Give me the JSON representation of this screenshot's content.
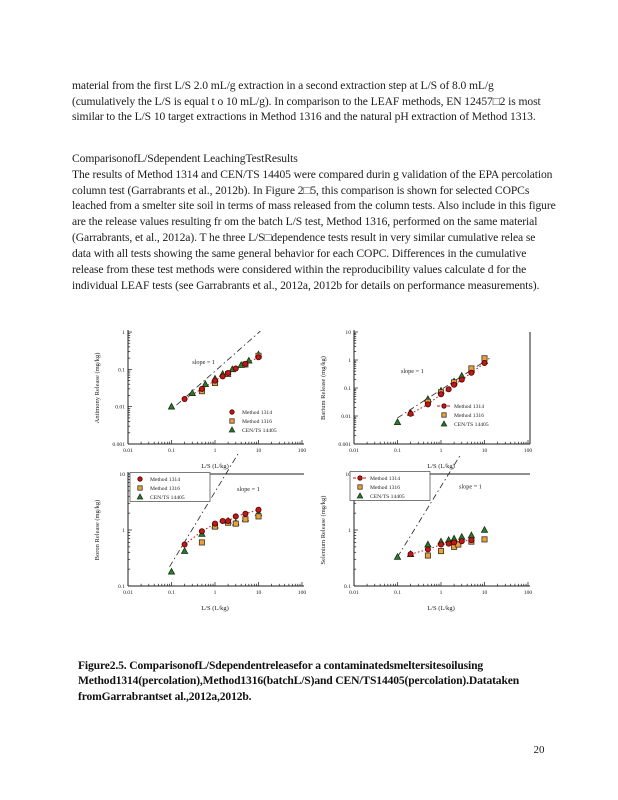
{
  "page_number": "20",
  "colors": {
    "ink": "#1c1c1c",
    "series_red": "#c01818",
    "series_orange": "#f0a030",
    "series_green": "#2c7a2c",
    "slope_line": "#222222"
  },
  "text": {
    "paragraph1": "material from the first L/S 2.0 mL/g extraction in a second extraction step at L/S of 8.0 mL/g (cumulatively the L/S is equal t o 10 mL/g).  In comparison to the LEAF methods, EN 12457□2 is most similar to the L/S 10 target  extractions in Method 1316 and the natural pH extraction of Method 1313.",
    "heading": "ComparisonofL/Sdependent  LeachingTestResults",
    "paragraph2": "The results of Method 1314 and CEN/TS 14405 were compared durin g validation of the EPA percolation column test (Garrabrants et al., 2012b).  In Figure  2□5, this comparison is shown for selected COPCs leached from a smelter site soil in terms of mass released from the column tests.  Also include in this figure are the release values resulting fr om the batch L/S test, Method 1316, performed on the same material (Garrabrants, et al., 2012a).  T he three L/S□dependence tests result in very similar cumulative relea se data with all tests showing  the same general behavior for each COPC.  Differences in the cumulative release from these test methods were considered within the reproducibility values calculate d for the individual LEAF tests (see Garrabrants et al., 2012a, 2012b for details on performance measurements).",
    "caption": "Figure2.5.  ComparisonofL/Sdependentreleasefor a contaminatedsmeltersitesoilusing Method1314(percolation),Method1316(batchL/S)and CEN/TS14405(percolation).Datataken fromGarrabrantset al.,2012a,2012b."
  },
  "chart_data": [
    {
      "type": "scatter",
      "name": "antimony",
      "xlabel": "L/S    (L/kg)",
      "ylabel": "Antimony     Release (mg/kg)",
      "xlim": [
        0.01,
        100
      ],
      "ylim": [
        0.001,
        1
      ],
      "xticks": [
        0.01,
        0.1,
        1,
        10,
        100
      ],
      "yticks": [
        1,
        0.1,
        0.01,
        0.001
      ],
      "grid": false,
      "slope_label": "slope = 1",
      "slope_label_at": [
        0.3,
        0.14
      ],
      "slope_line": {
        "x1": 0.13,
        "y1": 0.011,
        "x2": 11,
        "y2": 1.05
      },
      "frames": {
        "top": false,
        "right": false
      },
      "legend": {
        "pos": [
          138,
          92
        ],
        "box": false,
        "line_on_first": false
      },
      "series": [
        {
          "name": "Method    1314",
          "marker": "circle",
          "color": "#c01818",
          "edge": "#500000",
          "line": "dotted",
          "x": [
            0.2,
            0.5,
            1,
            1.5,
            2,
            3,
            5,
            10
          ],
          "y": [
            0.016,
            0.03,
            0.05,
            0.065,
            0.08,
            0.105,
            0.14,
            0.21
          ]
        },
        {
          "name": "Method    1316",
          "marker": "square",
          "color": "#f0a030",
          "edge": "#333333",
          "x": [
            0.5,
            1,
            2,
            5,
            10
          ],
          "y": [
            0.026,
            0.043,
            0.075,
            0.135,
            0.23
          ]
        },
        {
          "name": "CEN/TS  14405",
          "marker": "triangle",
          "color": "#2c7a2c",
          "edge": "#143314",
          "x": [
            0.1,
            0.3,
            0.6,
            1,
            1.5,
            2.5,
            4,
            6,
            10
          ],
          "y": [
            0.01,
            0.023,
            0.04,
            0.056,
            0.075,
            0.1,
            0.13,
            0.17,
            0.25
          ]
        }
      ]
    },
    {
      "type": "scatter",
      "name": "barium",
      "xlabel": "L/S    (L/kg)",
      "ylabel": "Barium     Release (mg/kg)",
      "xlim": [
        0.01,
        100
      ],
      "ylim": [
        0.001,
        10
      ],
      "xticks": [
        0.01,
        0.1,
        1,
        10,
        100
      ],
      "yticks": [
        10,
        1,
        0.1,
        0.01,
        0.001
      ],
      "grid": false,
      "slope_label": "slope = 1",
      "slope_label_at": [
        0.12,
        0.35
      ],
      "slope_line": {
        "x1": 0.1,
        "y1": 0.0085,
        "x2": 13,
        "y2": 1.15
      },
      "frames": {
        "top": false,
        "right": true
      },
      "legend": {
        "pos": [
          124,
          86
        ],
        "box": false,
        "line_on_first": true
      },
      "series": [
        {
          "name": "Method    1314",
          "marker": "circle",
          "color": "#c01818",
          "edge": "#500000",
          "line": "dotted",
          "x": [
            0.2,
            0.5,
            1,
            1.5,
            2,
            3,
            5,
            10
          ],
          "y": [
            0.012,
            0.026,
            0.06,
            0.09,
            0.13,
            0.2,
            0.35,
            0.78
          ]
        },
        {
          "name": "Method    1316",
          "marker": "square",
          "color": "#f0a030",
          "edge": "#333333",
          "x": [
            0.5,
            1,
            2,
            5,
            10
          ],
          "y": [
            0.032,
            0.07,
            0.16,
            0.5,
            1.15
          ]
        },
        {
          "name": "CEN/TS  14405",
          "marker": "triangle",
          "color": "#2c7a2c",
          "edge": "#143314",
          "x": [
            0.1,
            0.2,
            0.5,
            1,
            2,
            3,
            5,
            10
          ],
          "y": [
            0.006,
            0.013,
            0.04,
            0.08,
            0.17,
            0.27,
            0.45,
            0.92
          ]
        }
      ]
    },
    {
      "type": "scatter",
      "name": "boron",
      "xlabel": "L/S    (L/kg)",
      "ylabel": "Boron     Release (mg/kg)",
      "xlim": [
        0.01,
        100
      ],
      "ylim": [
        0.1,
        10
      ],
      "xticks": [
        0.01,
        0.1,
        1,
        10,
        100
      ],
      "yticks": [
        10,
        1,
        0.1
      ],
      "grid": false,
      "slope_label": "slope = 1",
      "slope_label_at": [
        3.2,
        5
      ],
      "slope_line": {
        "x1": 0.09,
        "y1": 0.22,
        "x2": 3.4,
        "y2": 23
      },
      "frames": {
        "top": true,
        "right": false
      },
      "legend": {
        "pos": [
          46,
          17
        ],
        "box": true,
        "line_on_first": false
      },
      "series": [
        {
          "name": "Method    1314",
          "marker": "circle",
          "color": "#c01818",
          "edge": "#500000",
          "line": "dotted",
          "x": [
            0.2,
            0.5,
            1,
            1.5,
            2,
            3,
            5,
            10
          ],
          "y": [
            0.55,
            0.95,
            1.3,
            1.45,
            1.45,
            1.75,
            1.95,
            2.3
          ]
        },
        {
          "name": "Method    1316",
          "marker": "square",
          "color": "#f0a030",
          "edge": "#333333",
          "x": [
            0.5,
            1,
            2,
            3,
            5,
            10
          ],
          "y": [
            0.6,
            1.15,
            1.35,
            1.3,
            1.55,
            1.75
          ]
        },
        {
          "name": "CEN/TS  14405",
          "marker": "triangle",
          "color": "#2c7a2c",
          "edge": "#143314",
          "x": [
            0.1,
            0.2,
            0.5,
            1,
            2,
            3,
            5,
            10
          ],
          "y": [
            0.18,
            0.42,
            0.85,
            1.2,
            1.45,
            1.35,
            1.6,
            2.0
          ]
        }
      ]
    },
    {
      "type": "scatter",
      "name": "selenium",
      "xlabel": "L/S    (L/kg)",
      "ylabel": "Selenium     Release (mg/kg)",
      "xlim": [
        0.01,
        100
      ],
      "ylim": [
        0.1,
        10
      ],
      "xticks": [
        0.01,
        0.1,
        1,
        10,
        100
      ],
      "yticks": [
        10,
        1,
        0.1
      ],
      "grid": false,
      "slope_label": "slope = 1",
      "slope_label_at": [
        2.6,
        5.5
      ],
      "slope_line": {
        "x1": 0.1,
        "y1": 0.33,
        "x2": 2.8,
        "y2": 22
      },
      "frames": {
        "top": true,
        "right": false
      },
      "legend": {
        "pos": [
          40,
          16
        ],
        "box": true,
        "line_on_first": true
      },
      "series": [
        {
          "name": "Method    1314",
          "marker": "circle",
          "color": "#c01818",
          "edge": "#500000",
          "line": "dotted",
          "x": [
            0.2,
            0.5,
            1,
            1.5,
            2,
            3,
            5
          ],
          "y": [
            0.37,
            0.45,
            0.55,
            0.57,
            0.6,
            0.63,
            0.66
          ]
        },
        {
          "name": "Method    1316",
          "marker": "square",
          "color": "#f0a030",
          "edge": "#333333",
          "x": [
            0.5,
            1,
            2,
            2.5,
            5,
            10
          ],
          "y": [
            0.35,
            0.42,
            0.5,
            0.55,
            0.62,
            0.68
          ]
        },
        {
          "name": "CEN/TS  14405",
          "marker": "triangle",
          "color": "#2c7a2c",
          "edge": "#143314",
          "x": [
            0.1,
            0.2,
            0.5,
            1,
            1.5,
            2,
            3,
            5,
            10
          ],
          "y": [
            0.33,
            0.37,
            0.55,
            0.62,
            0.66,
            0.7,
            0.75,
            0.8,
            1.0
          ]
        }
      ]
    }
  ]
}
